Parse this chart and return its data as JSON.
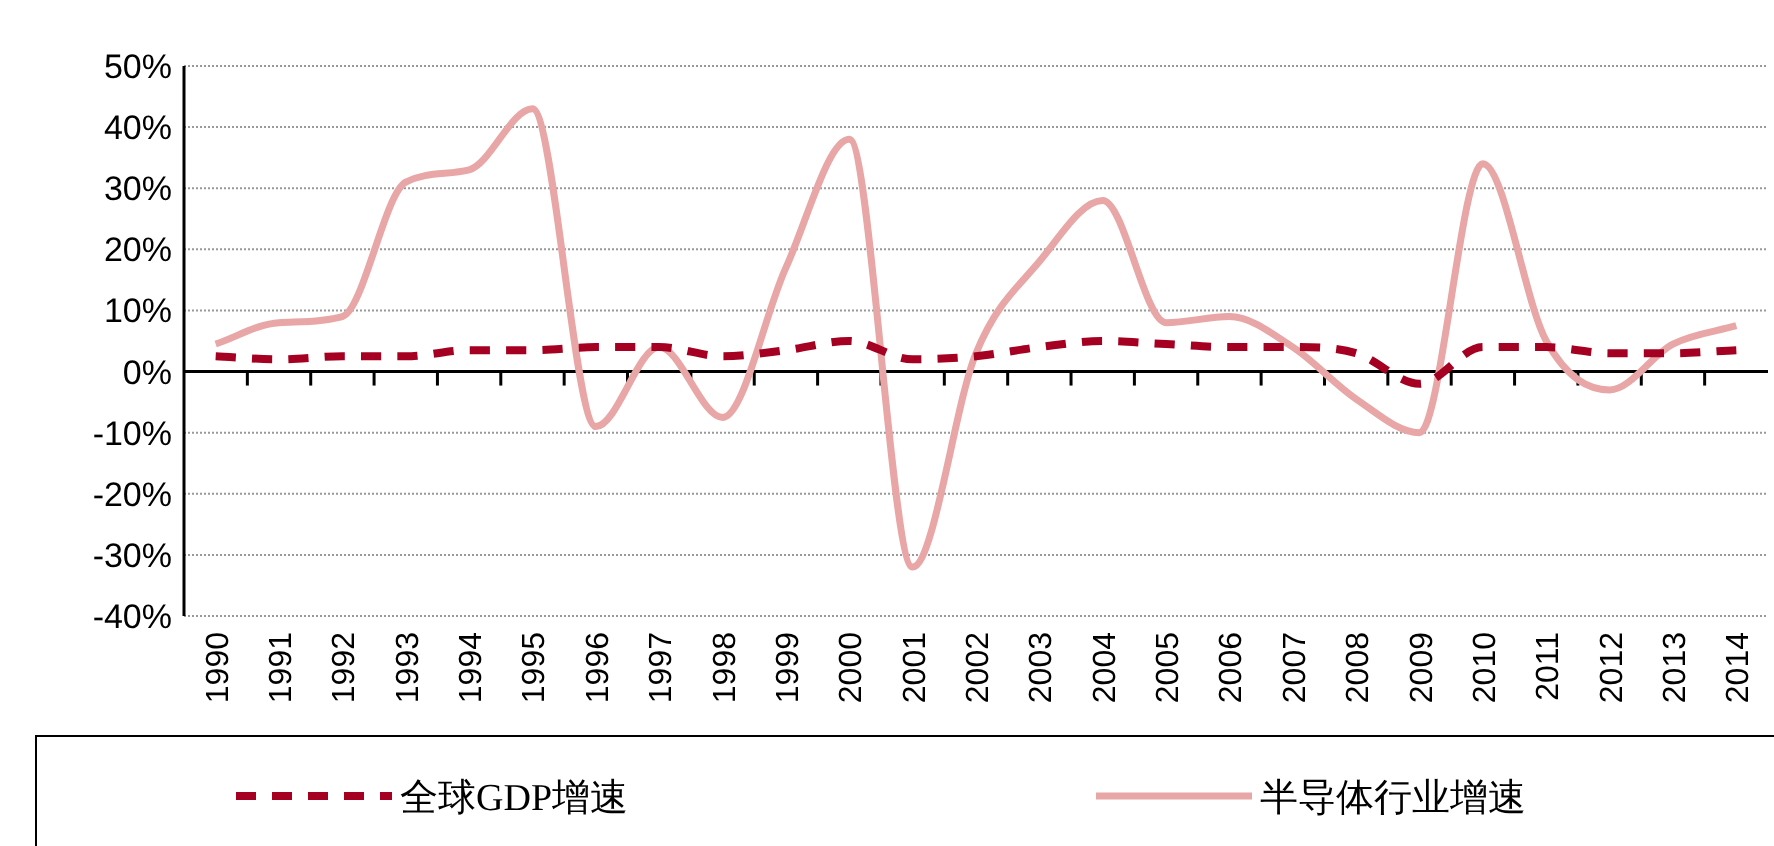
{
  "chart_data": {
    "type": "line",
    "categories": [
      "1990",
      "1991",
      "1992",
      "1993",
      "1994",
      "1995",
      "1996",
      "1997",
      "1998",
      "1999",
      "2000",
      "2001",
      "2002",
      "2003",
      "2004",
      "2005",
      "2006",
      "2007",
      "2008",
      "2009",
      "2010",
      "2011",
      "2012",
      "2013",
      "2014"
    ],
    "series": [
      {
        "name": "全球GDP增速",
        "color": "#a50021",
        "line_style": "dashed",
        "values": [
          2.5,
          2,
          2.5,
          2.5,
          3.5,
          3.5,
          4,
          4,
          2.5,
          3.5,
          5,
          2,
          2.5,
          4,
          5,
          4.5,
          4,
          4,
          3,
          -2,
          4,
          4,
          3,
          3,
          3.5
        ]
      },
      {
        "name": "半导体行业增速",
        "color": "#e8a6a6",
        "line_style": "solid",
        "values": [
          4.5,
          8,
          9,
          31,
          33,
          43,
          -9,
          4,
          -7.5,
          17,
          38,
          -32,
          3,
          18,
          28,
          8,
          9,
          4,
          -4.5,
          -10,
          34,
          5,
          -3,
          4.5,
          7.5
        ]
      }
    ],
    "ylim": [
      -40,
      50
    ],
    "yticks": [
      {
        "value": -40,
        "label": "-40%"
      },
      {
        "value": -30,
        "label": "-30%"
      },
      {
        "value": -20,
        "label": "-20%"
      },
      {
        "value": -10,
        "label": "-10%"
      },
      {
        "value": 0,
        "label": "0%"
      },
      {
        "value": 10,
        "label": "10%"
      },
      {
        "value": 20,
        "label": "20%"
      },
      {
        "value": 30,
        "label": "30%"
      },
      {
        "value": 40,
        "label": "40%"
      },
      {
        "value": 50,
        "label": "50%"
      }
    ],
    "grid": "y",
    "legend": "bottom"
  }
}
